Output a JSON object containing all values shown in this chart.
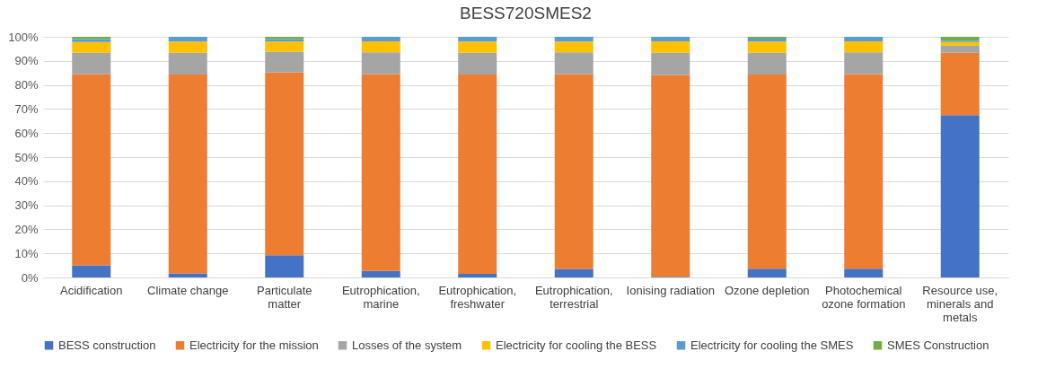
{
  "chart_data": {
    "type": "bar",
    "title": "BESS720SMES2",
    "stacked": true,
    "grid": "y",
    "legend": "bottom",
    "categories": [
      "Acidification",
      "Climate change",
      "Particulate matter",
      "Eutrophication, marine",
      "Eutrophication, freshwater",
      "Eutrophication, terrestrial",
      "Ionising radiation",
      "Ozone depletion",
      "Photochemical ozone formation",
      "Resource use, minerals and metals"
    ],
    "ylim": [
      0,
      100
    ],
    "yticks": [
      {
        "value": 0,
        "label": "0%"
      },
      {
        "value": 10,
        "label": "10%"
      },
      {
        "value": 20,
        "label": "20%"
      },
      {
        "value": 30,
        "label": "30%"
      },
      {
        "value": 40,
        "label": "40%"
      },
      {
        "value": 50,
        "label": "50%"
      },
      {
        "value": 60,
        "label": "60%"
      },
      {
        "value": 70,
        "label": "70%"
      },
      {
        "value": 80,
        "label": "80%"
      },
      {
        "value": 90,
        "label": "90%"
      },
      {
        "value": 100,
        "label": "100%"
      }
    ],
    "series": [
      {
        "name": "BESS construction",
        "color": "#4472c4",
        "values": [
          5.0,
          1.7,
          9.2,
          2.7,
          1.5,
          3.5,
          0.3,
          3.6,
          3.6,
          67.4
        ]
      },
      {
        "name": "Electricity for the mission",
        "color": "#ed7d31",
        "values": [
          79.5,
          82.6,
          76.1,
          81.8,
          82.8,
          81.0,
          83.8,
          80.7,
          80.9,
          26.0
        ]
      },
      {
        "name": "Losses of the system",
        "color": "#a5a5a5",
        "values": [
          8.9,
          9.1,
          8.5,
          9.1,
          9.1,
          9.1,
          9.3,
          9.1,
          9.1,
          3.0
        ]
      },
      {
        "name": "Electricity for cooling the BESS",
        "color": "#ffc000",
        "values": [
          4.5,
          4.6,
          4.2,
          4.5,
          4.6,
          4.4,
          4.7,
          4.6,
          4.5,
          1.5
        ]
      },
      {
        "name": "Electricity for cooling the SMES",
        "color": "#5b9bd5",
        "values": [
          1.2,
          2.0,
          1.1,
          1.9,
          2.0,
          2.0,
          1.9,
          1.3,
          1.9,
          0.5
        ]
      },
      {
        "name": "SMES Construction",
        "color": "#70ad47",
        "values": [
          0.9,
          null,
          0.9,
          null,
          null,
          null,
          null,
          0.7,
          null,
          1.6
        ]
      }
    ]
  }
}
